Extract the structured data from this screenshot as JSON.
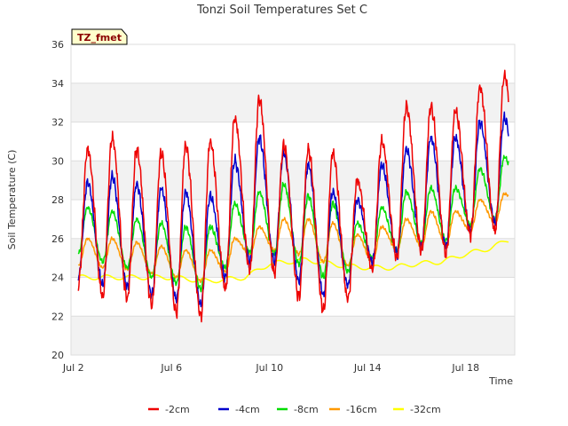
{
  "chart_data": {
    "type": "line",
    "title": "Tonzi Soil Temperatures Set C",
    "xlabel": "Time",
    "ylabel": "Soil Temperature (C)",
    "badge": "TZ_fmet",
    "xlim": [
      1.9,
      20.0
    ],
    "ylim": [
      20,
      36
    ],
    "yticks": [
      20,
      22,
      24,
      26,
      28,
      30,
      32,
      34,
      36
    ],
    "xticks": [
      {
        "value": 2,
        "label": "Jul 2"
      },
      {
        "value": 6,
        "label": "Jul 6"
      },
      {
        "value": 10,
        "label": "Jul 10"
      },
      {
        "value": 14,
        "label": "Jul 14"
      },
      {
        "value": 18,
        "label": "Jul 18"
      }
    ],
    "grid": true,
    "legend_position": "bottom",
    "series": [
      {
        "name": "-2cm",
        "color": "#ee0000",
        "daily_max": [
          30.6,
          31.2,
          30.6,
          30.4,
          30.8,
          31.0,
          32.2,
          33.2,
          30.8,
          30.6,
          30.4,
          29.0,
          31.0,
          32.8,
          32.8,
          32.6,
          33.8,
          34.4,
          34.0
        ],
        "daily_min": [
          23.6,
          23.0,
          22.9,
          22.6,
          22.2,
          22.0,
          23.4,
          24.4,
          24.2,
          23.0,
          22.3,
          22.9,
          24.4,
          25.0,
          25.4,
          25.2,
          26.2,
          26.4,
          27.4
        ]
      },
      {
        "name": "-4cm",
        "color": "#0000cc",
        "daily_max": [
          28.9,
          29.2,
          28.8,
          28.6,
          28.4,
          28.2,
          30.0,
          31.2,
          30.4,
          29.8,
          28.4,
          28.0,
          29.8,
          30.6,
          31.2,
          31.2,
          32.0,
          32.2,
          32.0
        ],
        "daily_min": [
          24.0,
          23.6,
          23.5,
          23.1,
          22.9,
          22.6,
          24.0,
          24.8,
          24.8,
          23.8,
          23.1,
          23.6,
          24.8,
          25.2,
          25.6,
          25.6,
          26.4,
          26.8,
          27.8
        ]
      },
      {
        "name": "-8cm",
        "color": "#00dd00",
        "daily_max": [
          27.6,
          27.4,
          27.0,
          26.8,
          26.6,
          26.6,
          27.8,
          28.4,
          28.8,
          28.2,
          27.8,
          26.8,
          27.6,
          28.4,
          28.6,
          28.6,
          29.6,
          30.2,
          30.4
        ],
        "daily_min": [
          25.2,
          24.8,
          24.5,
          24.0,
          23.7,
          23.4,
          24.5,
          25.3,
          25.2,
          24.7,
          24.0,
          24.3,
          25.0,
          25.4,
          25.8,
          25.9,
          26.7,
          27.0,
          28.0
        ]
      },
      {
        "name": "-16cm",
        "color": "#ff9900",
        "daily_max": [
          26.0,
          26.0,
          25.8,
          25.6,
          25.4,
          25.4,
          26.0,
          26.6,
          27.0,
          27.0,
          26.8,
          26.2,
          26.6,
          27.0,
          27.4,
          27.4,
          28.0,
          28.3,
          28.4
        ],
        "daily_min": [
          24.6,
          24.5,
          24.4,
          24.2,
          24.0,
          23.8,
          24.3,
          25.2,
          25.4,
          25.2,
          24.8,
          24.6,
          24.8,
          25.4,
          25.6,
          25.7,
          26.4,
          26.8,
          27.6
        ]
      },
      {
        "name": "-32cm",
        "color": "#ffff00",
        "trend_x": [
          2.2,
          4.0,
          6.0,
          7.5,
          9.0,
          10.0,
          11.5,
          13.0,
          14.0,
          15.0,
          16.0,
          17.0,
          18.0,
          19.0,
          19.7
        ],
        "trend_y": [
          24.0,
          24.0,
          24.0,
          23.8,
          24.0,
          24.7,
          24.9,
          24.6,
          24.5,
          24.5,
          24.7,
          24.8,
          25.2,
          25.5,
          25.9
        ],
        "amplitude": 0.12
      }
    ]
  }
}
